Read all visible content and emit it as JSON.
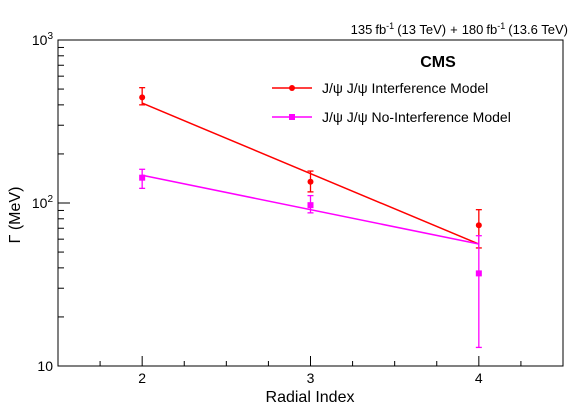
{
  "chart_data": {
    "type": "scatter",
    "experiment_label": "CMS",
    "luminosity": {
      "lumi1": "135",
      "unit1": "fb",
      "sup1": "-1",
      "energy1": "(13 TeV)",
      "plus": "+",
      "lumi2": "180",
      "unit2": "fb",
      "sup2": "-1",
      "energy2": "(13.6 TeV)"
    },
    "xlabel": "Radial Index",
    "ylabel": "Γ (MeV)",
    "xlim": [
      1.5,
      4.5
    ],
    "ylim": [
      10,
      1000
    ],
    "yscale": "log",
    "x_ticks": [
      2,
      3,
      4
    ],
    "x_tick_labels": [
      "2",
      "3",
      "4"
    ],
    "y_tick_labels": [
      {
        "value": 10,
        "base": "10",
        "exp": ""
      },
      {
        "value": 100,
        "base": "10",
        "exp": "2"
      },
      {
        "value": 1000,
        "base": "10",
        "exp": "3"
      }
    ],
    "legend_position": "top-right",
    "series": [
      {
        "name": "J/ψ J/ψ Interference Model",
        "color": "#ff0000",
        "marker": "circle",
        "x": [
          2,
          3,
          4
        ],
        "y": [
          445,
          135,
          73
        ],
        "y_err_low": [
          45,
          18,
          20
        ],
        "y_err_high": [
          65,
          22,
          18
        ],
        "fit_line": {
          "x": [
            2,
            4
          ],
          "y": [
            410,
            56
          ]
        }
      },
      {
        "name": "J/ψ J/ψ No-Interference Model",
        "color": "#ff00ff",
        "marker": "square",
        "x": [
          2,
          3,
          4
        ],
        "y": [
          143,
          97,
          37
        ],
        "y_err_low": [
          20,
          10,
          24
        ],
        "y_err_high": [
          18,
          14,
          26
        ],
        "fit_line": {
          "x": [
            2,
            4
          ],
          "y": [
            148,
            56
          ]
        }
      }
    ]
  }
}
